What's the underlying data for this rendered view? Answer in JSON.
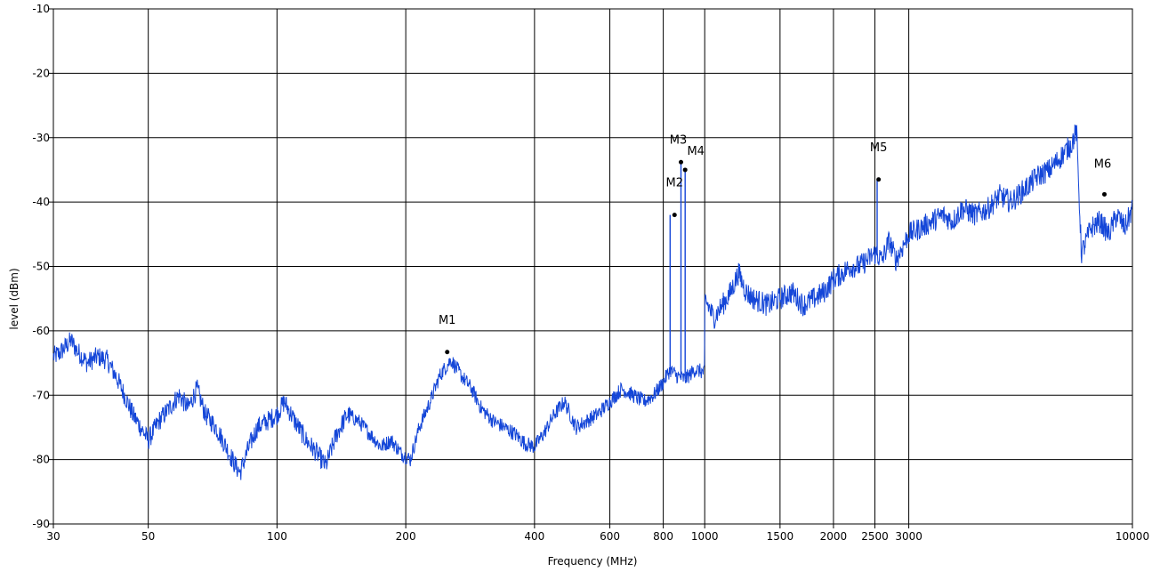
{
  "chart_data": {
    "type": "line",
    "title": "",
    "xlabel": "Frequency (MHz)",
    "ylabel": "level (dBm)",
    "xscale": "log",
    "xlim": [
      30,
      10000
    ],
    "ylim": [
      -90,
      -10
    ],
    "grid": true,
    "x_ticks": [
      30,
      50,
      100,
      200,
      400,
      600,
      800,
      1000,
      1500,
      2000,
      2500,
      3000,
      10000
    ],
    "x_tick_labels": [
      "30",
      "50",
      "100",
      "200",
      "400",
      "600",
      "800",
      "1000",
      "1500",
      "2000",
      "2500",
      "3000",
      "10000"
    ],
    "y_ticks": [
      -90,
      -80,
      -70,
      -60,
      -50,
      -40,
      -30,
      -20,
      -10
    ],
    "y_tick_labels": [
      "-90",
      "-80",
      "-70",
      "-60",
      "-50",
      "-40",
      "-30",
      "-20",
      "-10"
    ],
    "colors": {
      "trace": "#1446d8",
      "grid": "#000000",
      "marker": "#000000"
    },
    "series": [
      {
        "x": [
          30,
          31,
          33,
          34,
          36,
          38,
          40,
          42,
          44,
          46,
          48,
          50,
          53,
          56,
          59,
          62,
          65,
          68,
          72,
          76,
          80,
          82,
          86,
          90,
          95,
          100,
          104,
          110,
          117,
          124,
          130,
          138,
          146,
          155,
          165,
          175,
          185,
          195,
          205,
          215,
          228,
          240,
          255,
          270,
          285,
          300,
          320,
          340,
          360,
          380,
          400,
          420,
          445,
          470,
          500,
          530,
          560,
          600,
          640,
          680,
          720,
          760,
          800,
          830,
          860,
          900,
          950,
          999,
          1001,
          1050,
          1100,
          1150,
          1200,
          1250,
          1300,
          1400,
          1500,
          1600,
          1700,
          1800,
          1900,
          2000,
          2100,
          2200,
          2300,
          2400,
          2500,
          2600,
          2700,
          2800,
          2900,
          3000,
          3200,
          3400,
          3600,
          3800,
          4000,
          4300,
          4600,
          4900,
          5200,
          5600,
          6000,
          6400,
          6800,
          7000,
          7200,
          7400,
          7600,
          7800,
          8000,
          8400,
          8800,
          9200,
          9600,
          10000
        ],
        "y": [
          -64,
          -63.5,
          -61.5,
          -63,
          -65,
          -64,
          -64.5,
          -67,
          -70,
          -73,
          -75,
          -77,
          -74,
          -72,
          -70,
          -72,
          -69,
          -73,
          -75,
          -78,
          -81,
          -82,
          -78,
          -75,
          -74,
          -73,
          -71,
          -74,
          -77,
          -79,
          -81,
          -76,
          -73,
          -74,
          -76,
          -78,
          -77,
          -79,
          -80,
          -75,
          -71,
          -67,
          -64.5,
          -67,
          -69,
          -72,
          -74,
          -75,
          -76,
          -77.5,
          -78,
          -76,
          -73,
          -71,
          -75,
          -74,
          -73,
          -71,
          -69,
          -70,
          -71,
          -70,
          -68,
          -66,
          -67,
          -67.5,
          -66,
          -66.5,
          -55,
          -58,
          -56,
          -54,
          -51,
          -54,
          -55,
          -56,
          -55,
          -54,
          -56,
          -55,
          -54,
          -52,
          -51,
          -50,
          -50,
          -49,
          -48,
          -49,
          -46,
          -49,
          -47,
          -45,
          -44,
          -43,
          -42,
          -43,
          -41,
          -42,
          -41,
          -39,
          -40,
          -38,
          -36,
          -35,
          -33,
          -32,
          -31,
          -29,
          -48,
          -46,
          -44,
          -43,
          -45,
          -42,
          -44,
          -41
        ]
      }
    ],
    "markers": [
      {
        "label": "M1",
        "x": 250,
        "y": -63.3
      },
      {
        "label": "M2",
        "x": 850,
        "y": -42
      },
      {
        "label": "M3",
        "x": 880,
        "y": -33.8
      },
      {
        "label": "M4",
        "x": 900,
        "y": -35
      },
      {
        "label": "M5",
        "x": 2550,
        "y": -36.5
      },
      {
        "label": "M6",
        "x": 8600,
        "y": -38.8
      }
    ],
    "spikes": [
      {
        "x": 830,
        "y": -42
      },
      {
        "x": 880,
        "y": -33.8
      },
      {
        "x": 900,
        "y": -35
      },
      {
        "x": 2530,
        "y": -36.5
      }
    ]
  }
}
